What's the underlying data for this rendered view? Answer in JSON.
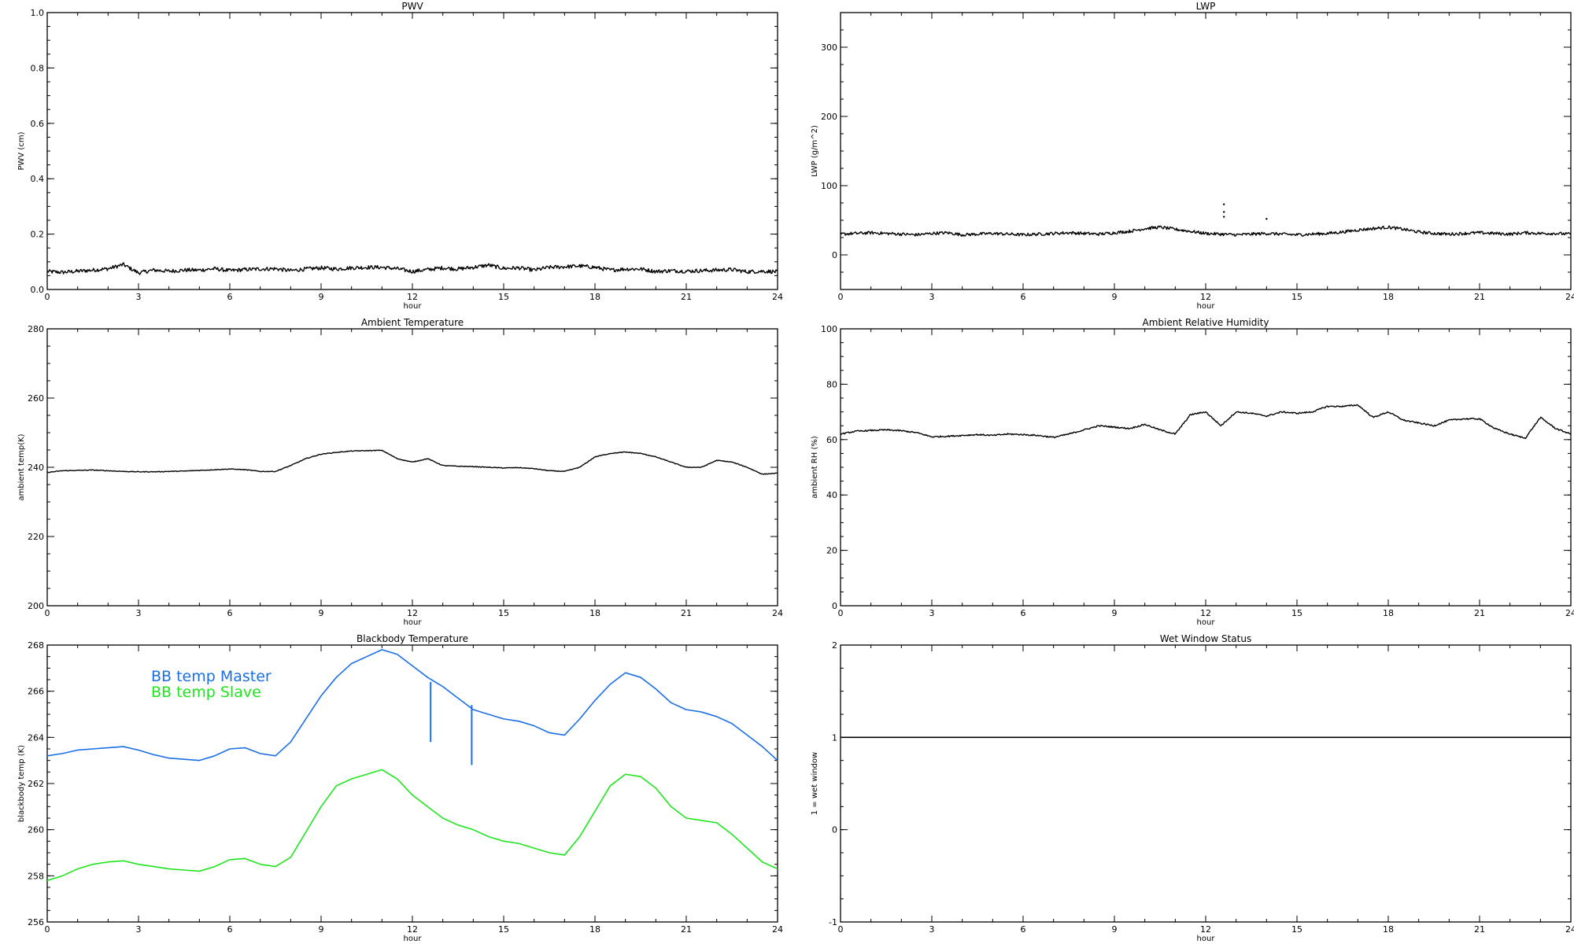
{
  "chart_data": [
    {
      "id": "pwv",
      "type": "line",
      "title": "PWV",
      "xlabel": "hour",
      "ylabel": "PWV (cm)",
      "xlim": [
        0,
        24
      ],
      "ylim": [
        0,
        1
      ],
      "x_ticks": [
        0,
        3,
        6,
        9,
        12,
        15,
        18,
        21,
        24
      ],
      "y_ticks": [
        0.0,
        0.2,
        0.4,
        0.6,
        0.8,
        1.0
      ],
      "y_tick_labels": [
        "0.0",
        "0.2",
        "0.4",
        "0.6",
        "0.8",
        "1.0"
      ],
      "noise": 0.007,
      "series": [
        {
          "name": "",
          "color": "#000000",
          "x": [
            0,
            0.5,
            1,
            1.5,
            2,
            2.5,
            3,
            3.5,
            4,
            4.5,
            5,
            5.5,
            6,
            6.5,
            7,
            7.5,
            8,
            8.5,
            9,
            9.5,
            10,
            10.5,
            11,
            11.5,
            12,
            12.5,
            13,
            13.5,
            14,
            14.5,
            15,
            15.5,
            16,
            16.5,
            17,
            17.5,
            18,
            18.5,
            19,
            19.5,
            20,
            20.5,
            21,
            21.5,
            22,
            22.5,
            23,
            23.5,
            24
          ],
          "y": [
            0.065,
            0.062,
            0.066,
            0.07,
            0.075,
            0.09,
            0.06,
            0.07,
            0.066,
            0.07,
            0.07,
            0.075,
            0.068,
            0.072,
            0.074,
            0.075,
            0.068,
            0.074,
            0.078,
            0.074,
            0.078,
            0.08,
            0.08,
            0.075,
            0.065,
            0.072,
            0.078,
            0.074,
            0.08,
            0.088,
            0.076,
            0.078,
            0.07,
            0.08,
            0.082,
            0.085,
            0.08,
            0.07,
            0.074,
            0.074,
            0.065,
            0.068,
            0.066,
            0.068,
            0.07,
            0.072,
            0.064,
            0.066,
            0.064
          ]
        }
      ]
    },
    {
      "id": "lwp",
      "type": "line",
      "title": "LWP",
      "xlabel": "hour",
      "ylabel": "LWP (g/m^2)",
      "xlim": [
        0,
        24
      ],
      "ylim": [
        -50,
        350
      ],
      "x_ticks": [
        0,
        3,
        6,
        9,
        12,
        15,
        18,
        21,
        24
      ],
      "y_ticks": [
        0,
        100,
        200,
        300
      ],
      "y_tick_labels": [
        "0",
        "100",
        "200",
        "300"
      ],
      "noise": 2.2,
      "series": [
        {
          "name": "",
          "color": "#000000",
          "x": [
            0,
            0.5,
            1,
            1.5,
            2,
            2.5,
            3,
            3.5,
            4,
            4.5,
            5,
            5.5,
            6,
            6.5,
            7,
            7.5,
            8,
            8.5,
            9,
            9.5,
            10,
            10.5,
            11,
            11.5,
            12,
            12.5,
            13,
            13.5,
            14,
            14.5,
            15,
            15.5,
            16,
            16.5,
            17,
            17.5,
            18,
            18.5,
            19,
            19.5,
            20,
            20.5,
            21,
            21.5,
            22,
            22.5,
            23,
            23.5,
            24
          ],
          "y": [
            30,
            31,
            32,
            31,
            30,
            29,
            31,
            32,
            29,
            30,
            31,
            30,
            29,
            30,
            31,
            32,
            31,
            30,
            32,
            34,
            38,
            40,
            37,
            34,
            31,
            30,
            29,
            30,
            31,
            30,
            29,
            30,
            31,
            33,
            36,
            38,
            40,
            37,
            33,
            31,
            30,
            31,
            32,
            31,
            30,
            32,
            31,
            31,
            30
          ]
        }
      ],
      "outlier_points": [
        [
          12.6,
          73
        ],
        [
          12.6,
          62
        ],
        [
          12.6,
          55
        ],
        [
          14.0,
          52
        ]
      ]
    },
    {
      "id": "ambient-temp",
      "type": "line",
      "title": "Ambient Temperature",
      "xlabel": "hour",
      "ylabel": "ambient temp(K)",
      "xlim": [
        0,
        24
      ],
      "ylim": [
        200,
        280
      ],
      "x_ticks": [
        0,
        3,
        6,
        9,
        12,
        15,
        18,
        21,
        24
      ],
      "y_ticks": [
        200,
        220,
        240,
        260,
        280
      ],
      "y_tick_labels": [
        "200",
        "220",
        "240",
        "260",
        "280"
      ],
      "noise": 0.1,
      "series": [
        {
          "name": "",
          "color": "#000000",
          "x": [
            0,
            0.5,
            1,
            1.5,
            2,
            2.5,
            3,
            3.5,
            4,
            4.5,
            5,
            5.5,
            6,
            6.5,
            7,
            7.5,
            8,
            8.5,
            9,
            9.5,
            10,
            10.5,
            11,
            11.5,
            12,
            12.5,
            13,
            13.5,
            14,
            14.5,
            15,
            15.5,
            16,
            16.5,
            17,
            17.5,
            18,
            18.5,
            19,
            19.5,
            20,
            20.5,
            21,
            21.5,
            22,
            22.5,
            23,
            23.5,
            24
          ],
          "y": [
            238.5,
            239.0,
            239.1,
            239.2,
            239.0,
            238.8,
            238.7,
            238.7,
            238.8,
            238.9,
            239.1,
            239.3,
            239.5,
            239.3,
            238.8,
            238.8,
            240.5,
            242.5,
            243.8,
            244.3,
            244.7,
            244.8,
            244.9,
            242.5,
            241.5,
            242.5,
            240.5,
            240.3,
            240.2,
            240.0,
            239.8,
            239.9,
            239.6,
            239.0,
            238.8,
            240.0,
            243.0,
            244.0,
            244.4,
            244.0,
            243.0,
            241.5,
            240.0,
            240.0,
            242.0,
            241.5,
            240.0,
            238.0,
            238.3
          ]
        }
      ]
    },
    {
      "id": "ambient-rh",
      "type": "line",
      "title": "Ambient Relative Humidity",
      "xlabel": "hour",
      "ylabel": "ambient RH (%)",
      "xlim": [
        0,
        24
      ],
      "ylim": [
        0,
        100
      ],
      "x_ticks": [
        0,
        3,
        6,
        9,
        12,
        15,
        18,
        21,
        24
      ],
      "y_ticks": [
        0,
        20,
        40,
        60,
        80,
        100
      ],
      "y_tick_labels": [
        "0",
        "20",
        "40",
        "60",
        "80",
        "100"
      ],
      "noise": 0.25,
      "series": [
        {
          "name": "",
          "color": "#000000",
          "x": [
            0,
            0.5,
            1,
            1.5,
            2,
            2.5,
            3,
            3.5,
            4,
            4.5,
            5,
            5.5,
            6,
            6.5,
            7,
            7.5,
            8,
            8.5,
            9,
            9.5,
            10,
            10.5,
            11,
            11.5,
            12,
            12.5,
            13,
            13.5,
            14,
            14.5,
            15,
            15.5,
            16,
            16.5,
            17,
            17.5,
            18,
            18.5,
            19,
            19.5,
            20,
            20.5,
            21,
            21.5,
            22,
            22.5,
            23,
            23.5,
            24
          ],
          "y": [
            62,
            63,
            63.3,
            63.5,
            63.2,
            62.5,
            61.0,
            61.2,
            61.5,
            61.8,
            61.5,
            62.0,
            61.8,
            61.5,
            60.8,
            62.0,
            63.5,
            65.0,
            64.5,
            64.0,
            65.5,
            63.5,
            62.0,
            69.0,
            70.0,
            65.0,
            70.0,
            69.5,
            68.5,
            70.0,
            69.5,
            70.0,
            72.0,
            72.0,
            72.5,
            68.0,
            70.0,
            67.0,
            66.0,
            65.0,
            67.0,
            67.5,
            67.5,
            64.0,
            62.0,
            60.5,
            68.0,
            64.0,
            62.0
          ]
        }
      ]
    },
    {
      "id": "blackbody-temp",
      "type": "line",
      "title": "Blackbody Temperature",
      "xlabel": "hour",
      "ylabel": "blackbody temp (K)",
      "xlim": [
        0,
        24
      ],
      "ylim": [
        256,
        268
      ],
      "x_ticks": [
        0,
        3,
        6,
        9,
        12,
        15,
        18,
        21,
        24
      ],
      "y_ticks": [
        256,
        258,
        260,
        262,
        264,
        266,
        268
      ],
      "y_tick_labels": [
        "256",
        "258",
        "260",
        "262",
        "264",
        "266",
        "268"
      ],
      "noise": 0,
      "legend": [
        "BB temp Master",
        "BB temp Slave"
      ],
      "series": [
        {
          "name": "BB temp Master",
          "color": "#1a6fe6",
          "x": [
            0,
            0.5,
            1,
            1.5,
            2,
            2.5,
            3,
            3.5,
            4,
            4.5,
            5,
            5.5,
            6,
            6.5,
            7,
            7.5,
            8,
            8.5,
            9,
            9.5,
            10,
            10.5,
            11,
            11.5,
            12,
            12.5,
            13,
            13.5,
            14,
            14.5,
            15,
            15.5,
            16,
            16.5,
            17,
            17.5,
            18,
            18.5,
            19,
            19.5,
            20,
            20.5,
            21,
            21.5,
            22,
            22.5,
            23,
            23.5,
            24
          ],
          "y": [
            263.2,
            263.3,
            263.45,
            263.5,
            263.55,
            263.6,
            263.45,
            263.25,
            263.1,
            263.05,
            263.0,
            263.2,
            263.5,
            263.55,
            263.3,
            263.2,
            263.8,
            264.8,
            265.8,
            266.6,
            267.2,
            267.5,
            267.8,
            267.6,
            267.1,
            266.6,
            266.2,
            265.7,
            265.2,
            265.0,
            264.8,
            264.7,
            264.5,
            264.2,
            264.1,
            264.8,
            265.6,
            266.3,
            266.8,
            266.6,
            266.1,
            265.5,
            265.2,
            265.1,
            264.9,
            264.6,
            264.1,
            263.6,
            263.0
          ]
        },
        {
          "name": "BB temp Slave",
          "color": "#1fe51f",
          "x": [
            0,
            0.5,
            1,
            1.5,
            2,
            2.5,
            3,
            3.5,
            4,
            4.5,
            5,
            5.5,
            6,
            6.5,
            7,
            7.5,
            8,
            8.5,
            9,
            9.5,
            10,
            10.5,
            11,
            11.5,
            12,
            12.5,
            13,
            13.5,
            14,
            14.5,
            15,
            15.5,
            16,
            16.5,
            17,
            17.5,
            18,
            18.5,
            19,
            19.5,
            20,
            20.5,
            21,
            21.5,
            22,
            22.5,
            23,
            23.5,
            24
          ],
          "y": [
            257.8,
            258.0,
            258.3,
            258.5,
            258.6,
            258.65,
            258.5,
            258.4,
            258.3,
            258.25,
            258.2,
            258.4,
            258.7,
            258.75,
            258.5,
            258.4,
            258.8,
            259.9,
            261.0,
            261.9,
            262.2,
            262.4,
            262.6,
            262.2,
            261.5,
            261.0,
            260.5,
            260.2,
            260.0,
            259.7,
            259.5,
            259.4,
            259.2,
            259.0,
            258.9,
            259.7,
            260.8,
            261.9,
            262.4,
            262.3,
            261.8,
            261.0,
            260.5,
            260.4,
            260.3,
            259.8,
            259.2,
            258.6,
            258.3
          ]
        }
      ],
      "spikes": [
        {
          "x": 12.6,
          "y_top": 266.4,
          "y_bottom": 263.8
        },
        {
          "x": 13.95,
          "y_top": 265.4,
          "y_bottom": 262.8
        }
      ]
    },
    {
      "id": "wet-window",
      "type": "line",
      "title": "Wet Window Status",
      "xlabel": "hour",
      "ylabel": "1 = wet window",
      "xlim": [
        0,
        24
      ],
      "ylim": [
        -1,
        2
      ],
      "x_ticks": [
        0,
        3,
        6,
        9,
        12,
        15,
        18,
        21,
        24
      ],
      "y_ticks": [
        -1,
        0,
        1,
        2
      ],
      "y_tick_labels": [
        "-1",
        "0",
        "1",
        "2"
      ],
      "noise": 0,
      "series": [
        {
          "name": "",
          "color": "#000000",
          "x": [
            0,
            24
          ],
          "y": [
            1,
            1
          ]
        }
      ]
    }
  ]
}
